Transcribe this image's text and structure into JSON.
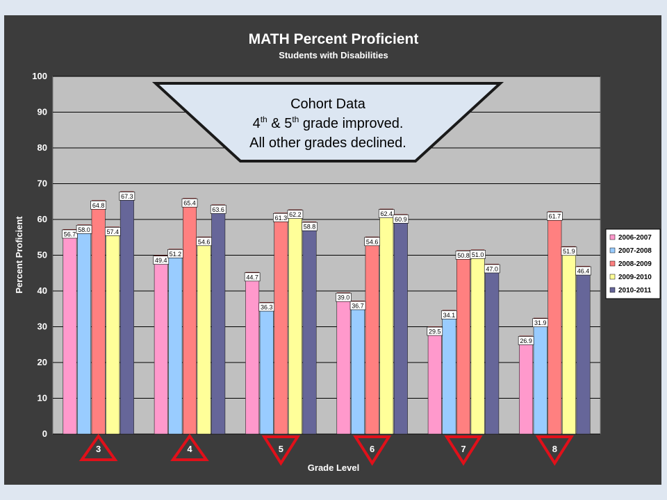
{
  "chart_data": {
    "type": "bar",
    "title": "MATH Percent Proficient",
    "subtitle": "Students with Disabilities",
    "xlabel": "Grade Level",
    "ylabel": "Percent Proficient",
    "ylim": [
      0,
      100
    ],
    "yticks": [
      "0",
      "10",
      "20",
      "30",
      "40",
      "50",
      "60",
      "70",
      "80",
      "90",
      "100"
    ],
    "categories": [
      "3",
      "4",
      "5",
      "6",
      "7",
      "8"
    ],
    "series": [
      {
        "name": "2006-2007",
        "color": "#ff99cc",
        "values": [
          56.7,
          49.4,
          44.7,
          39.0,
          29.5,
          26.9
        ],
        "labels": [
          "56.7",
          "49.4",
          "44.7",
          "39.0",
          "29.5",
          "26.9"
        ]
      },
      {
        "name": "2007-2008",
        "color": "#99ccff",
        "values": [
          58.0,
          51.2,
          36.3,
          36.7,
          34.1,
          31.9
        ],
        "labels": [
          "58.0",
          "51.2",
          "36.3",
          "36.7",
          "34.1",
          "31.9"
        ]
      },
      {
        "name": "2008-2009",
        "color": "#ff8080",
        "values": [
          64.8,
          65.4,
          61.3,
          54.6,
          50.8,
          61.7
        ],
        "labels": [
          "64.8",
          "65.4",
          "61.3",
          "54.6",
          "50.8",
          "61.7"
        ]
      },
      {
        "name": "2009-2010",
        "color": "#ffff99",
        "values": [
          57.4,
          54.6,
          62.2,
          62.4,
          51.0,
          51.9
        ],
        "labels": [
          "57.4",
          "54.6",
          "62.2",
          "62.4",
          "51.0",
          "51.9"
        ]
      },
      {
        "name": "2010-2011",
        "color": "#666699",
        "values": [
          67.3,
          63.6,
          58.8,
          60.9,
          47.0,
          46.4
        ],
        "labels": [
          "67.3",
          "63.6",
          "58.8",
          "60.9",
          "47.0",
          "46.4"
        ]
      }
    ],
    "category_markers": [
      "up",
      "up",
      "down",
      "down",
      "down",
      "down"
    ],
    "marker_color": "#e0101a",
    "plot_background": "#c0c0c0",
    "grid": true,
    "legend_position": "right"
  },
  "callout": {
    "line1": "Cohort Data",
    "line2_a": "4",
    "line2_sup1": "th",
    "line2_b": " & 5",
    "line2_sup2": "th",
    "line2_c": " grade improved.",
    "line3": "All other grades declined."
  }
}
